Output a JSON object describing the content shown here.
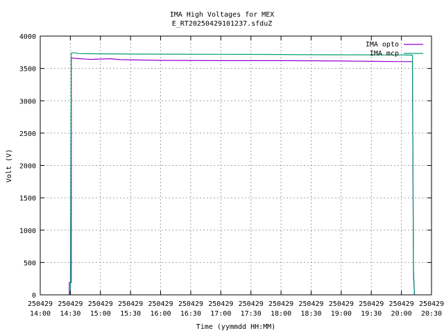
{
  "chart_data": {
    "type": "line",
    "title": "IMA High Voltages for MEX",
    "subtitle": "E_RT20250429101237.sfduZ",
    "xlabel": "Time (yymmdd HH:MM)",
    "ylabel": "Volt (V)",
    "x_date_prefix": "250429",
    "xlim": [
      "14:00",
      "20:30"
    ],
    "x_ticks": [
      "14:00",
      "14:30",
      "15:00",
      "15:30",
      "16:00",
      "16:30",
      "17:00",
      "17:30",
      "18:00",
      "18:30",
      "19:00",
      "19:30",
      "20:00",
      "20:30"
    ],
    "ylim": [
      0,
      4000
    ],
    "y_ticks": [
      0,
      500,
      1000,
      1500,
      2000,
      2500,
      3000,
      3500,
      4000
    ],
    "grid": true,
    "legend_position": "top-right",
    "series": [
      {
        "name": "IMA opto",
        "color": "#9400d3",
        "points": [
          [
            "14:29",
            0
          ],
          [
            "14:29",
            190
          ],
          [
            "14:31",
            190
          ],
          [
            "14:31",
            3660
          ],
          [
            "14:40",
            3650
          ],
          [
            "14:50",
            3640
          ],
          [
            "15:00",
            3645
          ],
          [
            "15:10",
            3650
          ],
          [
            "15:20",
            3635
          ],
          [
            "15:40",
            3630
          ],
          [
            "16:00",
            3625
          ],
          [
            "17:00",
            3620
          ],
          [
            "18:00",
            3620
          ],
          [
            "19:00",
            3615
          ],
          [
            "19:30",
            3610
          ],
          [
            "20:00",
            3605
          ],
          [
            "20:11",
            3605
          ],
          [
            "20:12",
            300
          ],
          [
            "20:13",
            0
          ]
        ]
      },
      {
        "name": "IMA mcp",
        "color": "#009e73",
        "points": [
          [
            "14:30",
            0
          ],
          [
            "14:31",
            3740
          ],
          [
            "14:36",
            3740
          ],
          [
            "14:37",
            3730
          ],
          [
            "15:00",
            3725
          ],
          [
            "16:00",
            3720
          ],
          [
            "17:00",
            3718
          ],
          [
            "18:00",
            3715
          ],
          [
            "18:30",
            3712
          ],
          [
            "19:00",
            3710
          ],
          [
            "20:00",
            3708
          ],
          [
            "20:11",
            3705
          ],
          [
            "20:12",
            400
          ],
          [
            "20:13",
            0
          ]
        ]
      }
    ]
  }
}
